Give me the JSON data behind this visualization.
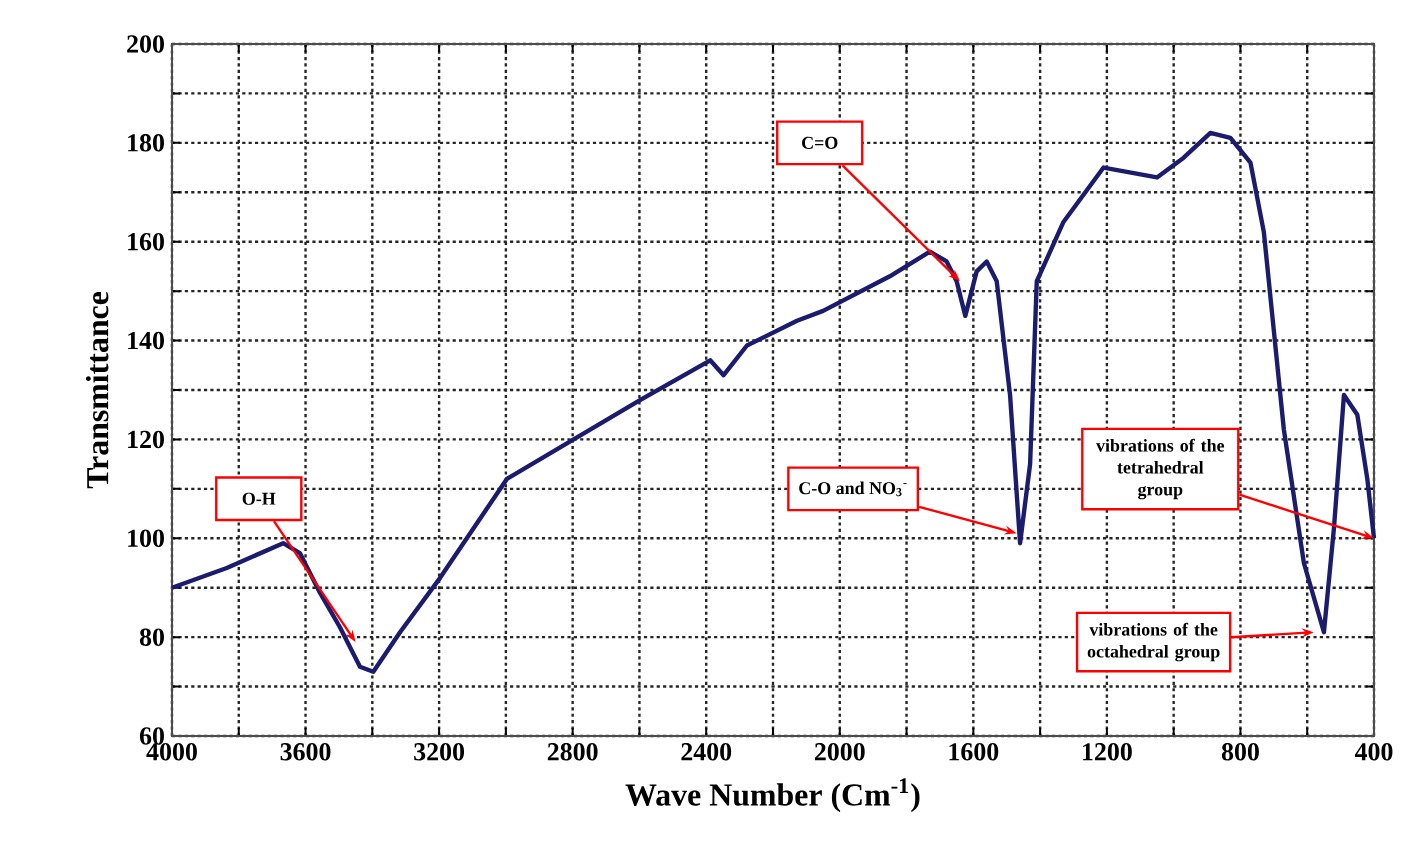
{
  "chart_data": {
    "type": "line",
    "xlabel": "Wave Number (Cm$^{-1}$)",
    "ylabel": "Transmittance",
    "xlim": [
      4000,
      400
    ],
    "ylim": [
      60,
      200
    ],
    "xticks": [
      4000,
      {
        "value": 3800,
        "label": null
      },
      3600,
      {
        "value": 3400,
        "label": null
      },
      3200,
      {
        "value": 3000,
        "label": null
      },
      2800,
      {
        "value": 2600,
        "label": null
      },
      2400,
      {
        "value": 2200,
        "label": null
      },
      2000,
      {
        "value": 1800,
        "label": null
      },
      1600,
      {
        "value": 1400,
        "label": null
      },
      1200,
      {
        "value": 1000,
        "label": null
      },
      800,
      {
        "value": 600,
        "label": null
      },
      400
    ],
    "yticks": [
      60,
      {
        "value": 70,
        "label": null
      },
      80,
      {
        "value": 90,
        "label": null
      },
      100,
      {
        "value": 110,
        "label": null
      },
      120,
      {
        "value": 130,
        "label": null
      },
      140,
      {
        "value": 150,
        "label": null
      },
      160,
      {
        "value": 170,
        "label": null
      },
      180,
      {
        "value": 190,
        "label": null
      },
      200
    ],
    "grid": true,
    "line_style": "solid",
    "series": [
      {
        "color": "#1c1c6e",
        "x": [
          4000,
          3836,
          3667,
          3617,
          3557,
          3497,
          3437,
          3397,
          3317,
          3197,
          3097,
          2997,
          2797,
          2597,
          2388,
          2348,
          2278,
          2128,
          2050,
          1850,
          1730,
          1680,
          1650,
          1624,
          1590,
          1560,
          1530,
          1490,
          1460,
          1430,
          1410,
          1330,
          1210,
          1130,
          1050,
          970,
          890,
          830,
          770,
          730,
          670,
          610,
          550,
          520,
          490,
          450,
          420,
          400
        ],
        "values": [
          90,
          94,
          99,
          97,
          89,
          82,
          74,
          73,
          81,
          92,
          102,
          112,
          120,
          128,
          136,
          133,
          139,
          144,
          146,
          153,
          158,
          156,
          152,
          145,
          154,
          156,
          152,
          129,
          99,
          115,
          152,
          164,
          175,
          174,
          173,
          177,
          182,
          181,
          176,
          162,
          122,
          95,
          81,
          102,
          129,
          125,
          112,
          100
        ]
      }
    ],
    "annotations": [
      {
        "text": "O-H",
        "x": 3450,
        "y": 79
      },
      {
        "text": "C=O",
        "x": 1640,
        "y": 152
      },
      {
        "text": "C-O and NO$_{3}$$^{-}$",
        "x": 1470,
        "y": 101
      },
      {
        "text": "vibrations of the tetrahedral group",
        "x": 400,
        "y": 100
      },
      {
        "text": "vibrations of the octahedral group",
        "x": 580,
        "y": 81
      }
    ]
  }
}
